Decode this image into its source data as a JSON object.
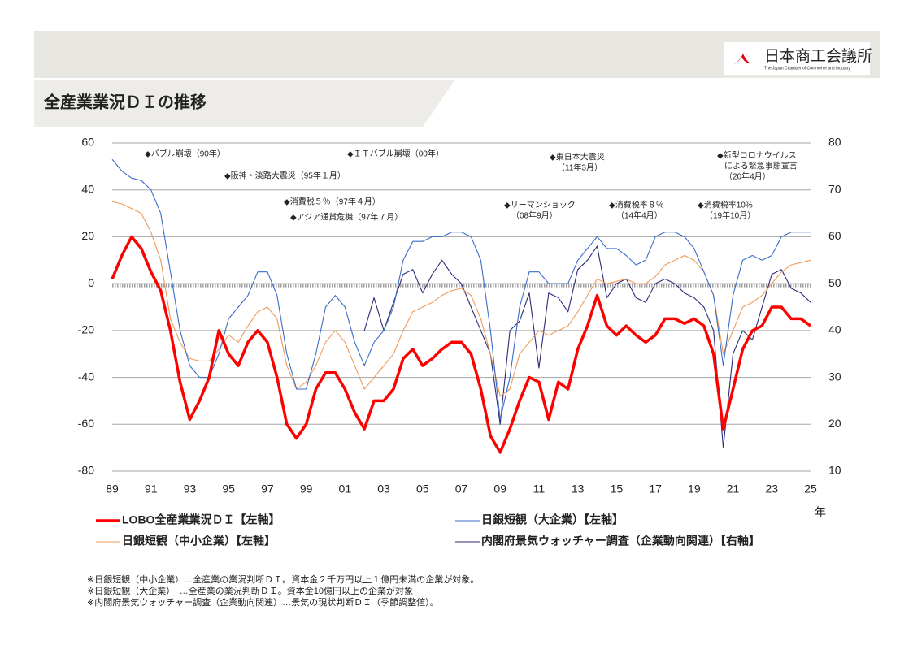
{
  "header": {
    "title": "全産業業況ＤＩの推移",
    "logo": "日本商工会議所",
    "logo_sub": "The Japan Chamber of Commerce and Industry"
  },
  "chart_data": {
    "type": "line",
    "x_unit": "年",
    "x": [
      1989,
      1989.5,
      1990,
      1990.5,
      1991,
      1991.5,
      1992,
      1992.5,
      1993,
      1993.5,
      1994,
      1994.5,
      1995,
      1995.5,
      1996,
      1996.5,
      1997,
      1997.5,
      1998,
      1998.5,
      1999,
      1999.5,
      2000,
      2000.5,
      2001,
      2001.5,
      2002,
      2002.5,
      2003,
      2003.5,
      2004,
      2004.5,
      2005,
      2005.5,
      2006,
      2006.5,
      2007,
      2007.5,
      2008,
      2008.5,
      2009,
      2009.5,
      2010,
      2010.5,
      2011,
      2011.5,
      2012,
      2012.5,
      2013,
      2013.5,
      2014,
      2014.5,
      2015,
      2015.5,
      2016,
      2016.5,
      2017,
      2017.5,
      2018,
      2018.5,
      2019,
      2019.5,
      2020,
      2020.5,
      2021,
      2021.5,
      2022,
      2022.5,
      2023,
      2023.5,
      2024,
      2024.5,
      2025
    ],
    "xlim": [
      1989,
      2025
    ],
    "xticks": [
      {
        "value": 1989,
        "label": "89"
      },
      {
        "value": 1991,
        "label": "91"
      },
      {
        "value": 1993,
        "label": "93"
      },
      {
        "value": 1995,
        "label": "95"
      },
      {
        "value": 1997,
        "label": "97"
      },
      {
        "value": 1999,
        "label": "99"
      },
      {
        "value": 2001,
        "label": "01"
      },
      {
        "value": 2003,
        "label": "03"
      },
      {
        "value": 2005,
        "label": "05"
      },
      {
        "value": 2007,
        "label": "07"
      },
      {
        "value": 2009,
        "label": "09"
      },
      {
        "value": 2011,
        "label": "11"
      },
      {
        "value": 2013,
        "label": "13"
      },
      {
        "value": 2015,
        "label": "15"
      },
      {
        "value": 2017,
        "label": "17"
      },
      {
        "value": 2019,
        "label": "19"
      },
      {
        "value": 2021,
        "label": "21"
      },
      {
        "value": 2023,
        "label": "23"
      },
      {
        "value": 2025,
        "label": "25"
      }
    ],
    "ylim": [
      -80,
      60
    ],
    "yticks": [
      -80,
      -60,
      -40,
      -20,
      0,
      20,
      40,
      60
    ],
    "y2lim": [
      10,
      80
    ],
    "y2ticks": [
      10,
      20,
      30,
      40,
      50,
      60,
      70,
      80
    ],
    "grid": true,
    "series": [
      {
        "name": "LOBO全産業業況ＤＩ【左軸】",
        "color": "#ff0000",
        "values": [
          2,
          12,
          20,
          15,
          5,
          -3,
          -20,
          -42,
          -58,
          -50,
          -40,
          -20,
          -30,
          -35,
          -25,
          -20,
          -25,
          -40,
          -60,
          -66,
          -60,
          -45,
          -38,
          -38,
          -45,
          -55,
          -62,
          -50,
          -50,
          -45,
          -32,
          -28,
          -35,
          -32,
          -28,
          -25,
          -25,
          -30,
          -45,
          -65,
          -72,
          -62,
          -50,
          -40,
          -42,
          -58,
          -42,
          -45,
          -28,
          -18,
          -5,
          -18,
          -22,
          -18,
          -22,
          -25,
          -22,
          -15,
          -15,
          -17,
          -15,
          -18,
          -30,
          -62,
          -45,
          -28,
          -20,
          -18,
          -10,
          -10,
          -15,
          -15,
          -18
        ]
      },
      {
        "name": "日銀短観（大企業）【左軸】",
        "color": "#3b6cc9",
        "values": [
          53,
          48,
          45,
          44,
          40,
          30,
          5,
          -20,
          -35,
          -40,
          -40,
          -30,
          -15,
          -10,
          -5,
          5,
          5,
          -5,
          -30,
          -45,
          -45,
          -30,
          -10,
          -5,
          -10,
          -25,
          -35,
          -25,
          -20,
          -10,
          10,
          18,
          18,
          20,
          20,
          22,
          22,
          20,
          10,
          -20,
          -58,
          -40,
          -10,
          5,
          5,
          0,
          0,
          0,
          10,
          15,
          20,
          15,
          15,
          12,
          8,
          10,
          20,
          22,
          22,
          20,
          15,
          5,
          -5,
          -35,
          -5,
          10,
          12,
          10,
          12,
          20,
          22,
          22,
          22
        ]
      },
      {
        "name": "日銀短観（中小企業）【左軸】",
        "color": "#ee9a5a",
        "values": [
          35,
          34,
          32,
          30,
          22,
          10,
          -15,
          -25,
          -32,
          -33,
          -33,
          -28,
          -22,
          -25,
          -18,
          -12,
          -10,
          -15,
          -35,
          -45,
          -42,
          -35,
          -25,
          -20,
          -25,
          -35,
          -45,
          -40,
          -35,
          -30,
          -20,
          -12,
          -10,
          -8,
          -5,
          -3,
          -2,
          -5,
          -15,
          -30,
          -48,
          -45,
          -30,
          -25,
          -20,
          -22,
          -20,
          -18,
          -12,
          -5,
          2,
          0,
          1,
          2,
          0,
          0,
          3,
          8,
          10,
          12,
          10,
          5,
          -5,
          -30,
          -20,
          -10,
          -8,
          -5,
          0,
          5,
          8,
          9,
          10
        ]
      },
      {
        "name": "内閣府景気ウォッチャー調査（企業動向関連）【右軸】",
        "color": "#2b2b7a",
        "axis": "y2",
        "values": [
          null,
          null,
          null,
          null,
          null,
          null,
          null,
          null,
          null,
          null,
          null,
          null,
          null,
          null,
          null,
          null,
          null,
          null,
          null,
          null,
          null,
          null,
          null,
          null,
          null,
          null,
          40,
          47,
          40,
          46,
          52,
          53,
          48,
          52,
          55,
          52,
          50,
          45,
          40,
          35,
          20,
          40,
          42,
          48,
          32,
          48,
          47,
          44,
          53,
          55,
          58,
          47,
          50,
          51,
          47,
          46,
          50,
          51,
          50,
          48,
          47,
          45,
          40,
          15,
          35,
          40,
          38,
          45,
          52,
          53,
          49,
          48,
          46
        ]
      }
    ],
    "annotations": [
      {
        "lines": [
          "◆バブル崩壊（90年）"
        ]
      },
      {
        "lines": [
          "◆ＩＴバブル崩壊（00年）"
        ]
      },
      {
        "lines": [
          "◆阪神・淡路大震災（95年１月）"
        ]
      },
      {
        "lines": [
          "◆消費税５％（97年４月）"
        ]
      },
      {
        "lines": [
          "◆アジア通貨危機（97年７月）"
        ]
      },
      {
        "lines": [
          "◆東日本大震災",
          "（11年3月）"
        ]
      },
      {
        "lines": [
          "◆リーマンショック",
          "（08年9月）"
        ]
      },
      {
        "lines": [
          "◆消費税率８％",
          "（14年4月）"
        ]
      },
      {
        "lines": [
          "◆消費税率10%",
          "（19年10月）"
        ]
      },
      {
        "lines": [
          "◆新型コロナウイルス",
          "による緊急事態宣言",
          "（20年4月）"
        ]
      }
    ]
  },
  "notes": [
    "※日銀短観（中小企業）…全産業の業況判断ＤＩ。資本金２千万円以上１億円未満の企業が対象。",
    "※日銀短観（大企業）　…全産業の業況判断ＤＩ。資本金10億円以上の企業が対象",
    "※内閣府景気ウォッチャー調査（企業動向関連）…景気の現状判断ＤＩ（季節調整値）。"
  ]
}
